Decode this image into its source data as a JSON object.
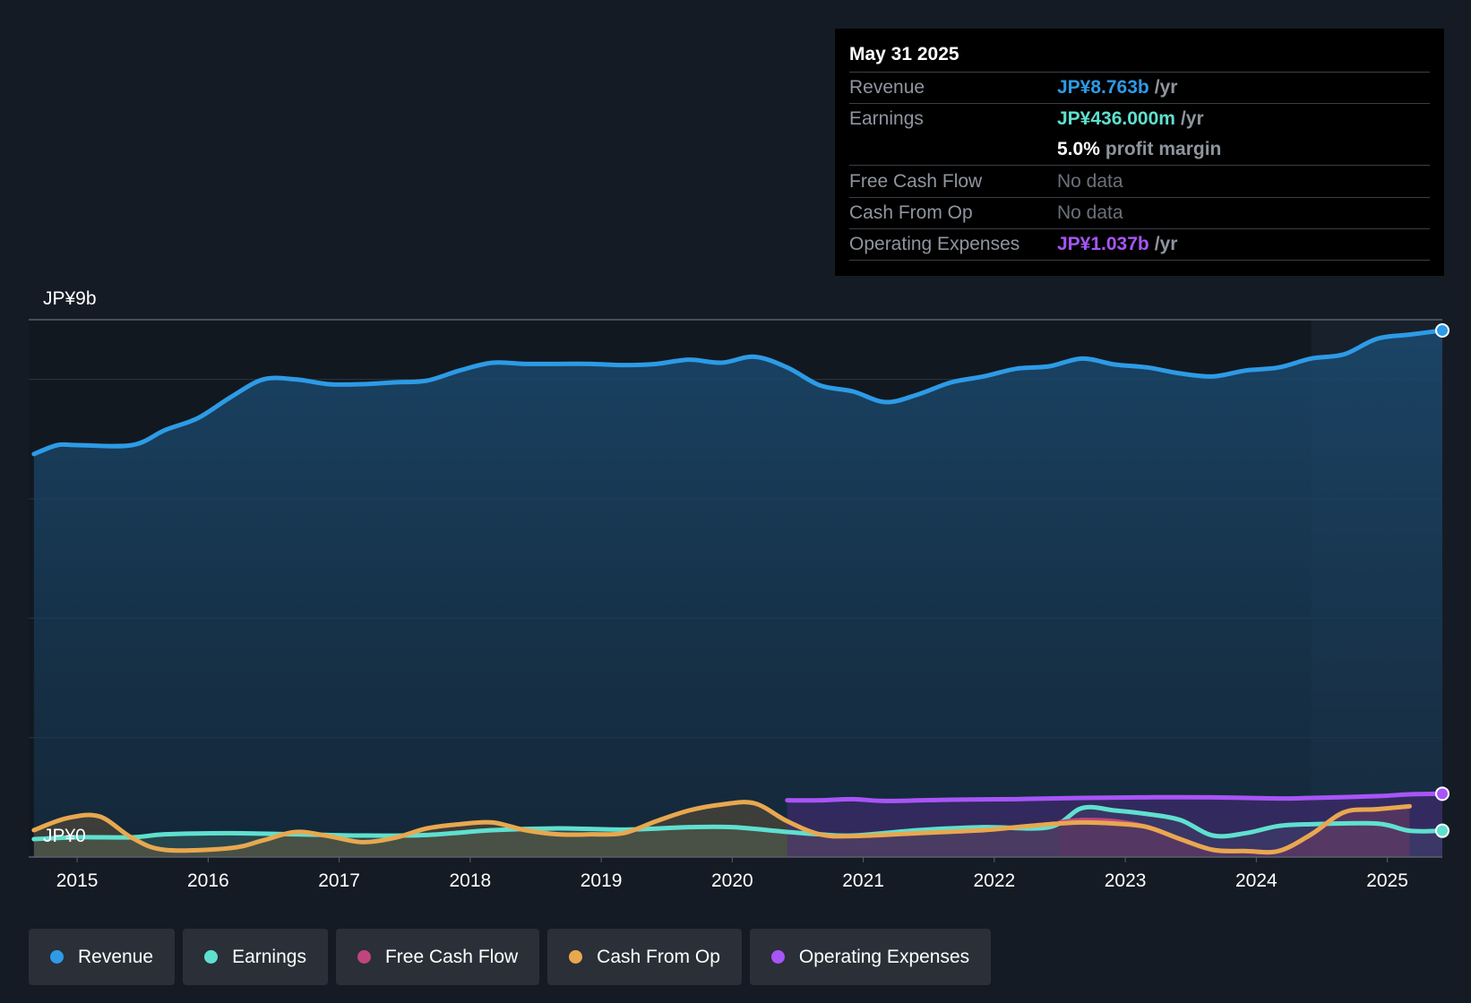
{
  "tooltip": {
    "date": "May 31 2025",
    "rows": [
      {
        "label": "Revenue",
        "value": "JP¥8.763b",
        "unit": "/yr",
        "color": "#2d9be6"
      },
      {
        "label": "Earnings",
        "value": "JP¥436.000m",
        "unit": "/yr",
        "color": "#5fe0cf"
      },
      {
        "label": "",
        "value": "5.0%",
        "unit": "profit margin",
        "color": "#ffffff"
      },
      {
        "label": "Free Cash Flow",
        "value": "No data",
        "unit": "",
        "color": "#6b717a"
      },
      {
        "label": "Cash From Op",
        "value": "No data",
        "unit": "",
        "color": "#6b717a"
      },
      {
        "label": "Operating Expenses",
        "value": "JP¥1.037b",
        "unit": "/yr",
        "color": "#a855f7"
      }
    ]
  },
  "legend": [
    {
      "label": "Revenue",
      "color": "#2d9be6"
    },
    {
      "label": "Earnings",
      "color": "#5fe0cf"
    },
    {
      "label": "Free Cash Flow",
      "color": "#c0457e"
    },
    {
      "label": "Cash From Op",
      "color": "#e8a84f"
    },
    {
      "label": "Operating Expenses",
      "color": "#a855f7"
    }
  ],
  "chart_data": {
    "type": "line",
    "y_top_label": "JP¥9b",
    "y_bottom_label": "JP¥0",
    "ylim": [
      0,
      9
    ],
    "xlim": [
      2014.63,
      2025.42
    ],
    "x_ticks": [
      "2015",
      "2016",
      "2017",
      "2018",
      "2019",
      "2020",
      "2021",
      "2022",
      "2023",
      "2024",
      "2025"
    ],
    "series": [
      {
        "name": "Revenue",
        "color": "#2d9be6",
        "points": [
          [
            2014.67,
            6.75
          ],
          [
            2014.85,
            6.9
          ],
          [
            2015.0,
            6.9
          ],
          [
            2015.42,
            6.9
          ],
          [
            2015.67,
            7.15
          ],
          [
            2015.92,
            7.35
          ],
          [
            2016.17,
            7.7
          ],
          [
            2016.42,
            8.0
          ],
          [
            2016.67,
            8.0
          ],
          [
            2016.92,
            7.92
          ],
          [
            2017.17,
            7.92
          ],
          [
            2017.42,
            7.95
          ],
          [
            2017.67,
            7.98
          ],
          [
            2017.92,
            8.15
          ],
          [
            2018.17,
            8.28
          ],
          [
            2018.42,
            8.26
          ],
          [
            2018.67,
            8.26
          ],
          [
            2018.92,
            8.26
          ],
          [
            2019.17,
            8.24
          ],
          [
            2019.42,
            8.26
          ],
          [
            2019.67,
            8.33
          ],
          [
            2019.92,
            8.28
          ],
          [
            2020.17,
            8.38
          ],
          [
            2020.42,
            8.2
          ],
          [
            2020.67,
            7.9
          ],
          [
            2020.92,
            7.8
          ],
          [
            2021.17,
            7.62
          ],
          [
            2021.42,
            7.75
          ],
          [
            2021.67,
            7.95
          ],
          [
            2021.92,
            8.05
          ],
          [
            2022.17,
            8.18
          ],
          [
            2022.42,
            8.22
          ],
          [
            2022.67,
            8.35
          ],
          [
            2022.92,
            8.25
          ],
          [
            2023.17,
            8.2
          ],
          [
            2023.42,
            8.1
          ],
          [
            2023.67,
            8.05
          ],
          [
            2023.92,
            8.15
          ],
          [
            2024.17,
            8.2
          ],
          [
            2024.42,
            8.35
          ],
          [
            2024.67,
            8.42
          ],
          [
            2024.92,
            8.68
          ],
          [
            2025.17,
            8.75
          ],
          [
            2025.42,
            8.82
          ]
        ]
      },
      {
        "name": "Earnings",
        "color": "#5fe0cf",
        "points": [
          [
            2014.67,
            0.3
          ],
          [
            2015.0,
            0.33
          ],
          [
            2015.42,
            0.33
          ],
          [
            2015.67,
            0.38
          ],
          [
            2016.17,
            0.4
          ],
          [
            2016.67,
            0.38
          ],
          [
            2017.17,
            0.36
          ],
          [
            2017.67,
            0.37
          ],
          [
            2018.17,
            0.45
          ],
          [
            2018.67,
            0.48
          ],
          [
            2019.17,
            0.46
          ],
          [
            2019.67,
            0.5
          ],
          [
            2020.0,
            0.5
          ],
          [
            2020.42,
            0.42
          ],
          [
            2020.67,
            0.38
          ],
          [
            2020.92,
            0.36
          ],
          [
            2021.42,
            0.45
          ],
          [
            2021.92,
            0.5
          ],
          [
            2022.42,
            0.5
          ],
          [
            2022.67,
            0.82
          ],
          [
            2022.92,
            0.78
          ],
          [
            2023.17,
            0.72
          ],
          [
            2023.42,
            0.62
          ],
          [
            2023.67,
            0.36
          ],
          [
            2023.92,
            0.4
          ],
          [
            2024.17,
            0.52
          ],
          [
            2024.42,
            0.55
          ],
          [
            2024.92,
            0.56
          ],
          [
            2025.17,
            0.44
          ],
          [
            2025.42,
            0.44
          ]
        ]
      },
      {
        "name": "Free Cash Flow",
        "color": "#c0457e",
        "points": [
          [
            2022.5,
            0.58
          ],
          [
            2022.67,
            0.62
          ],
          [
            2022.92,
            0.6
          ],
          [
            2023.17,
            0.5
          ],
          [
            2023.42,
            0.3
          ],
          [
            2023.67,
            0.12
          ],
          [
            2023.92,
            0.1
          ],
          [
            2024.17,
            0.1
          ],
          [
            2024.42,
            0.38
          ],
          [
            2024.67,
            0.75
          ],
          [
            2024.92,
            0.8
          ],
          [
            2025.17,
            0.85
          ]
        ]
      },
      {
        "name": "Cash From Op",
        "color": "#e8a84f",
        "points": [
          [
            2014.67,
            0.45
          ],
          [
            2014.92,
            0.65
          ],
          [
            2015.17,
            0.68
          ],
          [
            2015.42,
            0.32
          ],
          [
            2015.67,
            0.12
          ],
          [
            2016.17,
            0.15
          ],
          [
            2016.42,
            0.28
          ],
          [
            2016.67,
            0.42
          ],
          [
            2016.92,
            0.35
          ],
          [
            2017.17,
            0.25
          ],
          [
            2017.42,
            0.32
          ],
          [
            2017.67,
            0.48
          ],
          [
            2017.92,
            0.55
          ],
          [
            2018.17,
            0.58
          ],
          [
            2018.42,
            0.45
          ],
          [
            2018.67,
            0.38
          ],
          [
            2018.92,
            0.38
          ],
          [
            2019.17,
            0.4
          ],
          [
            2019.42,
            0.6
          ],
          [
            2019.67,
            0.78
          ],
          [
            2019.92,
            0.88
          ],
          [
            2020.17,
            0.9
          ],
          [
            2020.42,
            0.6
          ],
          [
            2020.67,
            0.38
          ],
          [
            2020.92,
            0.35
          ],
          [
            2021.42,
            0.4
          ],
          [
            2021.92,
            0.45
          ],
          [
            2022.17,
            0.5
          ],
          [
            2022.42,
            0.55
          ],
          [
            2022.67,
            0.58
          ],
          [
            2022.92,
            0.56
          ],
          [
            2023.17,
            0.5
          ],
          [
            2023.42,
            0.3
          ],
          [
            2023.67,
            0.12
          ],
          [
            2023.92,
            0.1
          ],
          [
            2024.17,
            0.1
          ],
          [
            2024.42,
            0.38
          ],
          [
            2024.67,
            0.75
          ],
          [
            2024.92,
            0.8
          ],
          [
            2025.17,
            0.85
          ]
        ]
      },
      {
        "name": "Operating Expenses",
        "color": "#a855f7",
        "points": [
          [
            2020.42,
            0.95
          ],
          [
            2020.67,
            0.95
          ],
          [
            2020.92,
            0.97
          ],
          [
            2021.17,
            0.94
          ],
          [
            2021.67,
            0.96
          ],
          [
            2022.17,
            0.97
          ],
          [
            2022.67,
            0.99
          ],
          [
            2023.17,
            1.0
          ],
          [
            2023.67,
            1.0
          ],
          [
            2024.17,
            0.98
          ],
          [
            2024.42,
            0.99
          ],
          [
            2024.92,
            1.02
          ],
          [
            2025.17,
            1.05
          ],
          [
            2025.42,
            1.06
          ]
        ]
      }
    ],
    "grid": true,
    "legend_position": "bottom-left"
  }
}
